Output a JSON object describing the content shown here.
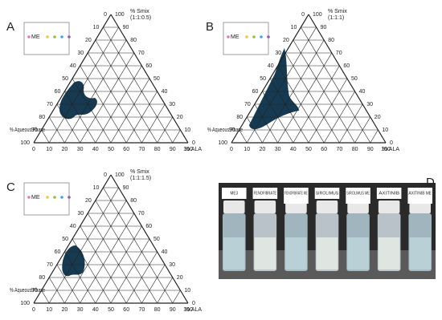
{
  "panels": [
    {
      "label": "A",
      "apex_title": "% Smix",
      "ratio": "(1:1:0.5)",
      "left_title": "% Aqueous Phase",
      "right_title": "% ALA"
    },
    {
      "label": "B",
      "apex_title": "% Smix",
      "ratio": "(1:1:1)",
      "left_title": "% Aqueous Phase",
      "right_title": "% ALA"
    },
    {
      "label": "C",
      "apex_title": "% Smix",
      "ratio": "(1:1:1.5)",
      "left_title": "% Aqueous Phase",
      "right_title": "% ALA"
    }
  ],
  "ticks": [
    0,
    10,
    20,
    30,
    40,
    50,
    60,
    70,
    80,
    90,
    100
  ],
  "legend": "ME",
  "photo": {
    "label": "D",
    "vials": [
      "ME3",
      "FENOFIBRATE",
      "FENOFIBRATE ME",
      "SIROLIMUS",
      "SIROLIMUS ME",
      "AXITINIB",
      "AXITINIB ME"
    ]
  }
}
